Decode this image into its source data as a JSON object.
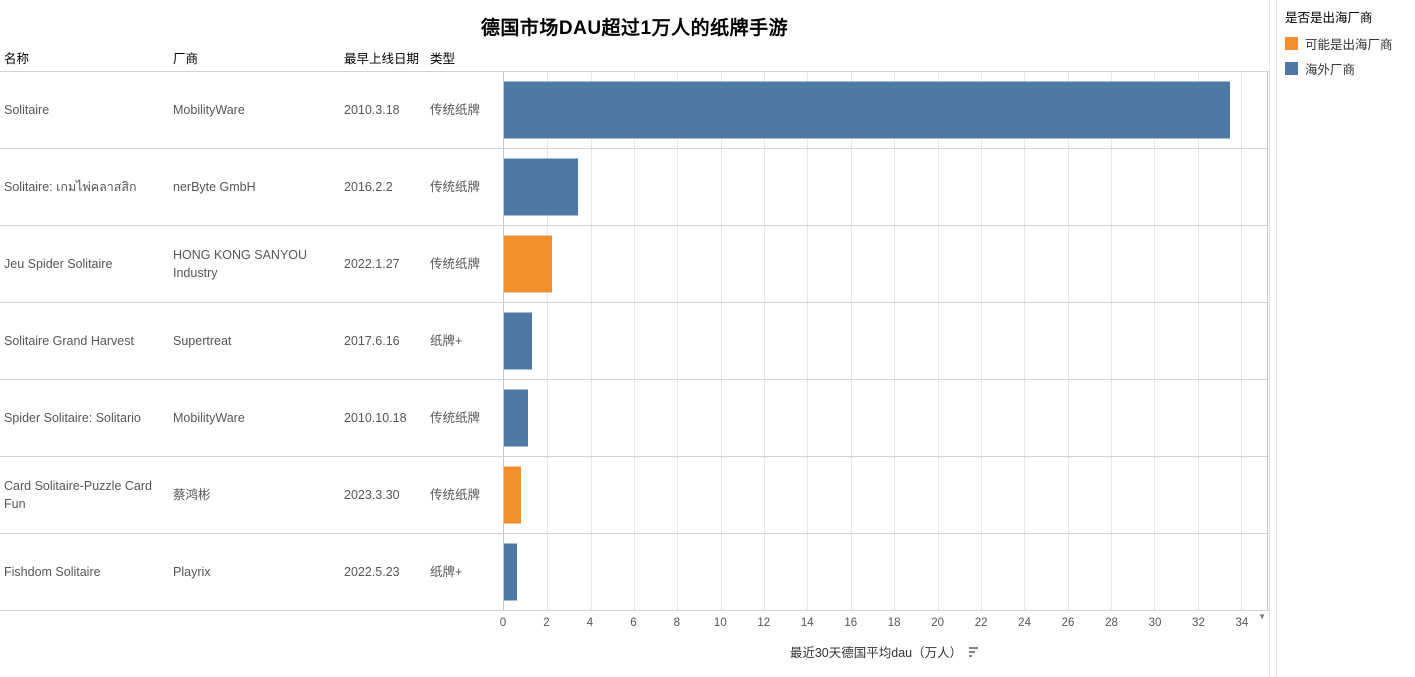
{
  "title": "德国市场DAU超过1万人的纸牌手游",
  "table": {
    "columns": [
      {
        "key": "name",
        "label": "名称"
      },
      {
        "key": "vendor",
        "label": "厂商"
      },
      {
        "key": "date",
        "label": "最早上线日期"
      },
      {
        "key": "type",
        "label": "类型"
      }
    ]
  },
  "rows": [
    {
      "name": "Solitaire",
      "vendor": "MobilityWare",
      "date": "2010.3.18",
      "type": "传统纸牌",
      "value": 33.5,
      "group": "海外厂商"
    },
    {
      "name": "Solitaire: เกมไพ่คลาสสิก",
      "vendor": "nerByte GmbH",
      "date": "2016.2.2",
      "type": "传统纸牌",
      "value": 3.4,
      "group": "海外厂商"
    },
    {
      "name": "Jeu Spider Solitaire",
      "vendor": "HONG KONG SANYOU Industry",
      "date": "2022.1.27",
      "type": "传统纸牌",
      "value": 2.2,
      "group": "可能是出海厂商"
    },
    {
      "name": "Solitaire Grand Harvest",
      "vendor": "Supertreat",
      "date": "2017.6.16",
      "type": "纸牌+",
      "value": 1.3,
      "group": "海外厂商"
    },
    {
      "name": "Spider Solitaire: Solitario",
      "vendor": "MobilityWare",
      "date": "2010.10.18",
      "type": "传统纸牌",
      "value": 1.1,
      "group": "海外厂商"
    },
    {
      "name": "Card Solitaire-Puzzle Card Fun",
      "vendor": "蔡鸿彬",
      "date": "2023.3.30",
      "type": "传统纸牌",
      "value": 0.8,
      "group": "可能是出海厂商"
    },
    {
      "name": "Fishdom Solitaire",
      "vendor": "Playrix",
      "date": "2022.5.23",
      "type": "纸牌+",
      "value": 0.6,
      "group": "海外厂商"
    }
  ],
  "axis": {
    "label": "最近30天德国平均dau（万人）",
    "ticks": [
      0,
      2,
      4,
      6,
      8,
      10,
      12,
      14,
      16,
      18,
      20,
      22,
      24,
      26,
      28,
      30,
      32,
      34
    ],
    "max": 35.2,
    "dropdown_icon": "▼"
  },
  "legend": {
    "title": "是否是出海厂商",
    "items": [
      {
        "label": "可能是出海厂商",
        "color": "#f28e2b"
      },
      {
        "label": "海外厂商",
        "color": "#4e79a7"
      }
    ]
  },
  "chart_data": {
    "type": "bar",
    "orientation": "horizontal",
    "title": "德国市场DAU超过1万人的纸牌手游",
    "xlabel": "最近30天德国平均dau（万人）",
    "xlim": [
      0,
      35.2
    ],
    "grid": true,
    "legend_position": "top-right",
    "legend_title": "是否是出海厂商",
    "categories": [
      "Solitaire",
      "Solitaire: เกมไพ่คลาสสิก",
      "Jeu Spider Solitaire",
      "Solitaire Grand Harvest",
      "Spider Solitaire: Solitario",
      "Card Solitaire-Puzzle Card Fun",
      "Fishdom Solitaire"
    ],
    "values": [
      33.5,
      3.4,
      2.2,
      1.3,
      1.1,
      0.8,
      0.6
    ],
    "groups": [
      "海外厂商",
      "海外厂商",
      "可能是出海厂商",
      "海外厂商",
      "海外厂商",
      "可能是出海厂商",
      "海外厂商"
    ],
    "group_colors": {
      "海外厂商": "#4e79a7",
      "可能是出海厂商": "#f28e2b"
    }
  }
}
